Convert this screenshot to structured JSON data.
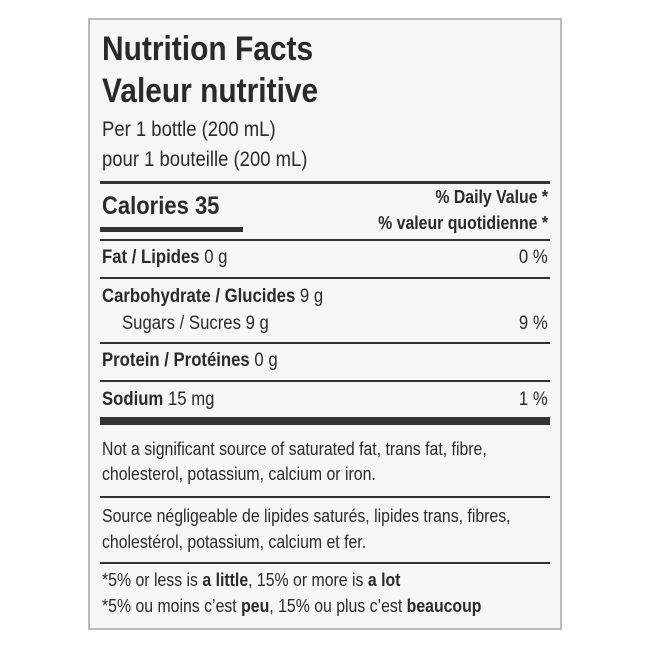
{
  "title": {
    "en": "Nutrition Facts",
    "fr": "Valeur nutritive"
  },
  "serving": {
    "en": "Per 1 bottle (200 mL)",
    "fr": "pour 1 bouteille (200 mL)"
  },
  "calories": {
    "label": "Calories",
    "value": "35"
  },
  "daily_value_header": {
    "en": "% Daily Value",
    "fr": "% valeur quotidienne",
    "mark": "*"
  },
  "rows": [
    {
      "name": "Fat / Lipides",
      "amount": "0 g",
      "dv": "0 %"
    },
    {
      "name": "Carbohydrate / Glucides",
      "amount": "9 g"
    },
    {
      "name": "Sugars / Sucres",
      "amount": "9 g",
      "dv": "9 %"
    },
    {
      "name": "Protein / Protéines",
      "amount": "0 g"
    },
    {
      "name": "Sodium",
      "amount": "15 mg",
      "dv": "1 %"
    }
  ],
  "notes": {
    "en": [
      "Not a significant source of saturated fat, trans fat, fibre,",
      "cholesterol, potassium, calcium or iron."
    ],
    "fr": [
      "Source négligeable de lipides saturés, lipides trans, fibres,",
      "cholestérol, potassium, calcium et fer."
    ]
  },
  "footnote": {
    "en": [
      "*5% or less is ",
      "a little",
      ", 15% or more is ",
      "a lot"
    ],
    "fr": [
      "*5% ou moins c’est ",
      "peu",
      ", 15% ou plus c’est ",
      "beaucoup"
    ]
  }
}
